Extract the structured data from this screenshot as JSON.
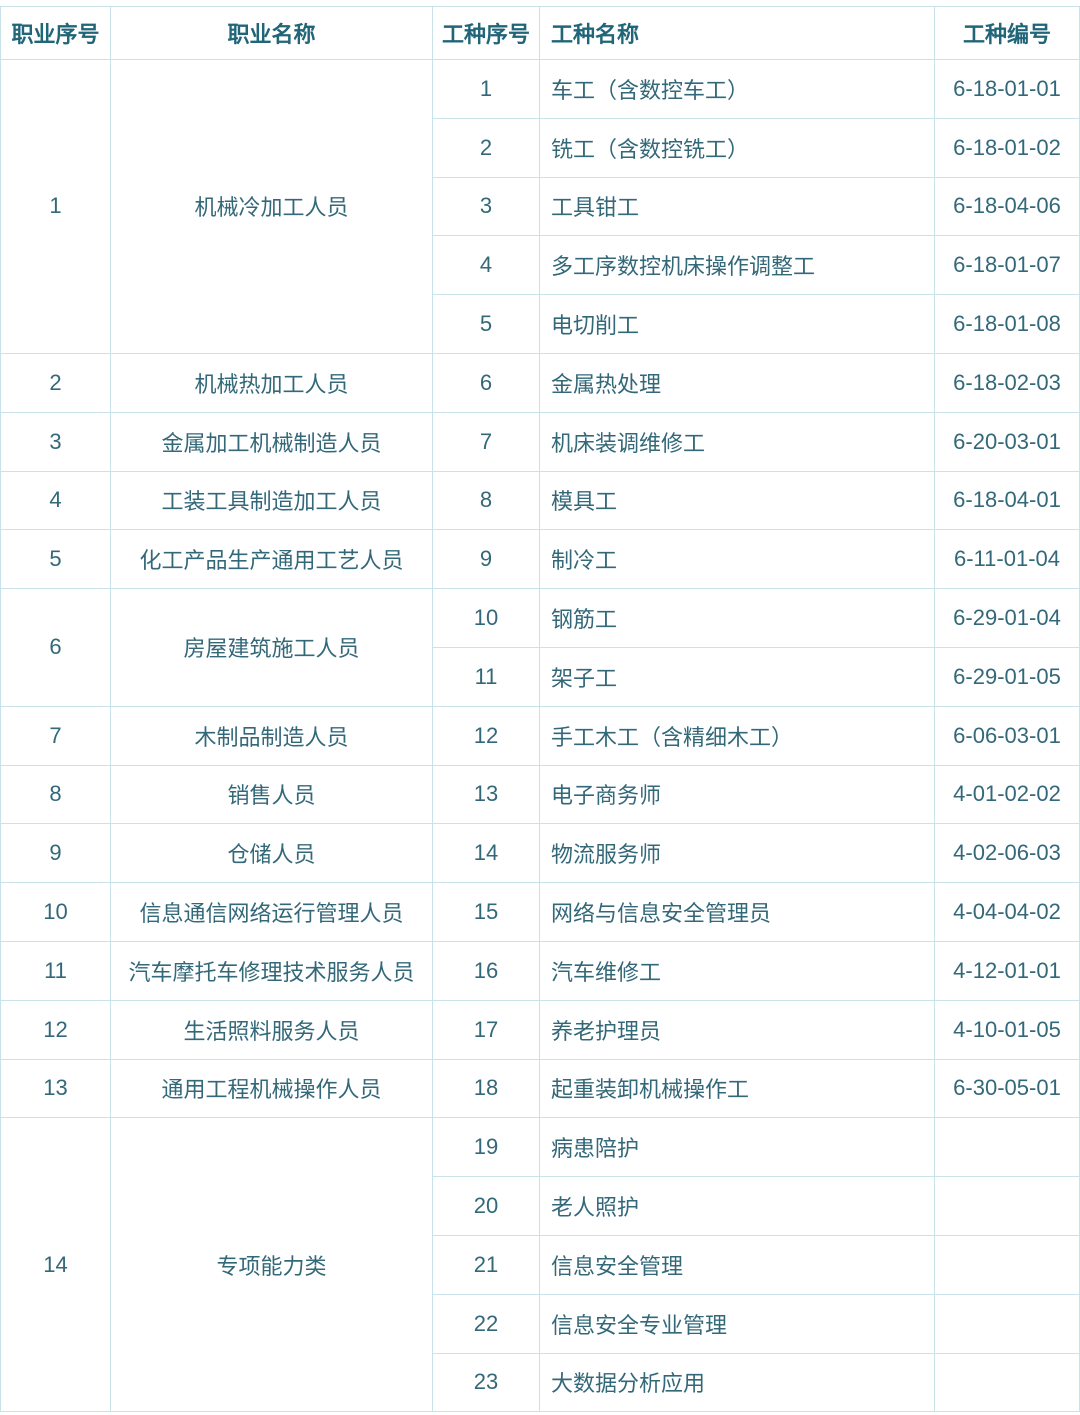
{
  "table": {
    "headers": {
      "occupation_no": "职业序号",
      "occupation_name": "职业名称",
      "worktype_no": "工种序号",
      "worktype_name": "工种名称",
      "worktype_code": "工种编号"
    },
    "colors": {
      "header_text": "#216579",
      "body_text": "#336879",
      "border": "#c9e2e9",
      "background": "#ffffff"
    },
    "groups": [
      {
        "no": "1",
        "name": "机械冷加工人员",
        "worktypes": [
          {
            "no": "1",
            "name": "车工（含数控车工）",
            "code": "6-18-01-01"
          },
          {
            "no": "2",
            "name": "铣工（含数控铣工）",
            "code": "6-18-01-02"
          },
          {
            "no": "3",
            "name": "工具钳工",
            "code": "6-18-04-06"
          },
          {
            "no": "4",
            "name": "多工序数控机床操作调整工",
            "code": "6-18-01-07"
          },
          {
            "no": "5",
            "name": "电切削工",
            "code": "6-18-01-08"
          }
        ]
      },
      {
        "no": "2",
        "name": "机械热加工人员",
        "worktypes": [
          {
            "no": "6",
            "name": "金属热处理",
            "code": "6-18-02-03"
          }
        ]
      },
      {
        "no": "3",
        "name": "金属加工机械制造人员",
        "worktypes": [
          {
            "no": "7",
            "name": "机床装调维修工",
            "code": "6-20-03-01"
          }
        ]
      },
      {
        "no": "4",
        "name": "工装工具制造加工人员",
        "worktypes": [
          {
            "no": "8",
            "name": "模具工",
            "code": "6-18-04-01"
          }
        ]
      },
      {
        "no": "5",
        "name": "化工产品生产通用工艺人员",
        "worktypes": [
          {
            "no": "9",
            "name": "制冷工",
            "code": "6-11-01-04"
          }
        ]
      },
      {
        "no": "6",
        "name": "房屋建筑施工人员",
        "worktypes": [
          {
            "no": "10",
            "name": "钢筋工",
            "code": "6-29-01-04"
          },
          {
            "no": "11",
            "name": "架子工",
            "code": "6-29-01-05"
          }
        ]
      },
      {
        "no": "7",
        "name": "木制品制造人员",
        "worktypes": [
          {
            "no": "12",
            "name": "手工木工（含精细木工）",
            "code": "6-06-03-01"
          }
        ]
      },
      {
        "no": "8",
        "name": "销售人员",
        "worktypes": [
          {
            "no": "13",
            "name": "电子商务师",
            "code": "4-01-02-02"
          }
        ]
      },
      {
        "no": "9",
        "name": "仓储人员",
        "worktypes": [
          {
            "no": "14",
            "name": "物流服务师",
            "code": "4-02-06-03"
          }
        ]
      },
      {
        "no": "10",
        "name": "信息通信网络运行管理人员",
        "worktypes": [
          {
            "no": "15",
            "name": "网络与信息安全管理员",
            "code": "4-04-04-02"
          }
        ]
      },
      {
        "no": "11",
        "name": "汽车摩托车修理技术服务人员",
        "worktypes": [
          {
            "no": "16",
            "name": "汽车维修工",
            "code": "4-12-01-01"
          }
        ]
      },
      {
        "no": "12",
        "name": "生活照料服务人员",
        "worktypes": [
          {
            "no": "17",
            "name": "养老护理员",
            "code": "4-10-01-05"
          }
        ]
      },
      {
        "no": "13",
        "name": "通用工程机械操作人员",
        "worktypes": [
          {
            "no": "18",
            "name": "起重装卸机械操作工",
            "code": "6-30-05-01"
          }
        ]
      },
      {
        "no": "14",
        "name": "专项能力类",
        "worktypes": [
          {
            "no": "19",
            "name": "病患陪护",
            "code": ""
          },
          {
            "no": "20",
            "name": "老人照护",
            "code": ""
          },
          {
            "no": "21",
            "name": "信息安全管理",
            "code": ""
          },
          {
            "no": "22",
            "name": "信息安全专业管理",
            "code": ""
          },
          {
            "no": "23",
            "name": "大数据分析应用",
            "code": ""
          }
        ]
      }
    ]
  }
}
